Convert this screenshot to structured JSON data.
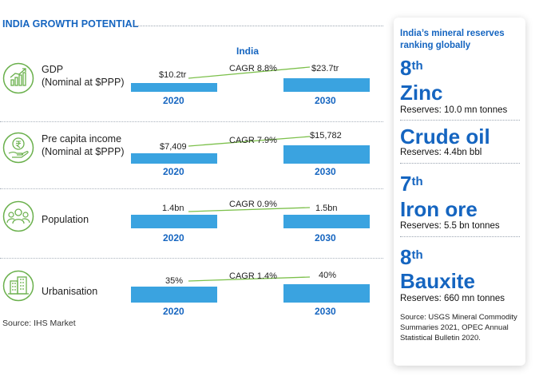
{
  "title": "INDIA GROWTH POTENTIAL",
  "column_header": "India",
  "rows": [
    {
      "label_line1": "GDP",
      "label_line2": "(Nominal at $PPP)",
      "icon": "chart-growth-icon",
      "value_2020": "$10.2tr",
      "value_2030": "$23.7tr",
      "cagr": "CAGR 8.8%",
      "year_1": "2020",
      "year_2": "2030"
    },
    {
      "label_line1": "Pre capita income",
      "label_line2": "(Nominal at $PPP)",
      "icon": "rupee-hand-icon",
      "value_2020": "$7,409",
      "value_2030": "$15,782",
      "cagr": "CAGR 7.9%",
      "year_1": "2020",
      "year_2": "2030"
    },
    {
      "label_line1": "Population",
      "label_line2": "",
      "icon": "people-icon",
      "value_2020": "1.4bn",
      "value_2030": "1.5bn",
      "cagr": "CAGR 0.9%",
      "year_1": "2020",
      "year_2": "2030"
    },
    {
      "label_line1": "Urbanisation",
      "label_line2": "",
      "icon": "buildings-icon",
      "value_2020": "35%",
      "value_2030": "40%",
      "cagr": "CAGR 1.4%",
      "year_1": "2020",
      "year_2": "2030"
    }
  ],
  "source": "Source: IHS Market",
  "panel": {
    "title": "India’s mineral reserves ranking globally",
    "items": [
      {
        "rank_num": "8",
        "rank_suffix": "th",
        "mineral": "Zinc",
        "reserves": "Reserves: 10.0 mn tonnes"
      },
      {
        "rank_num": "",
        "rank_suffix": "",
        "mineral": "Crude oil",
        "reserves": "Reserves: 4.4bn bbl"
      },
      {
        "rank_num": "7",
        "rank_suffix": "th",
        "mineral": "Iron ore",
        "reserves": "Reserves: 5.5 bn tonnes"
      },
      {
        "rank_num": "8",
        "rank_suffix": "th",
        "mineral": "Bauxite",
        "reserves": "Reserves: 660 mn tonnes"
      }
    ],
    "source": "Source: USGS Mineral Commodity Summaries 2021, OPEC Annual Statistical Bulletin 2020."
  },
  "colors": {
    "accent": "#1565c0",
    "bar": "#3aa3e0",
    "trend_line": "#7cc04b",
    "icon": "#6ab04c"
  }
}
